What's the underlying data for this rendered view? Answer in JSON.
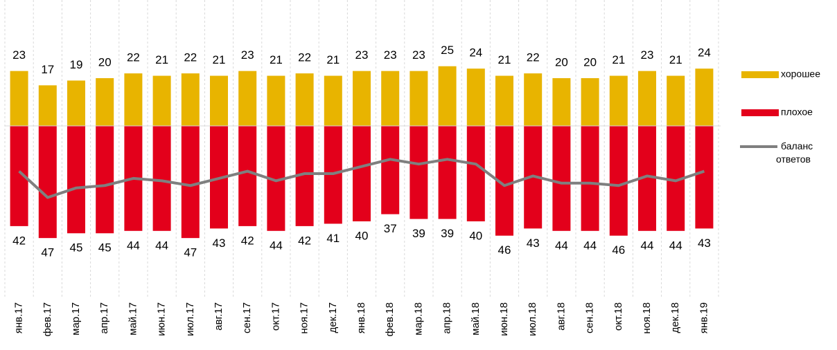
{
  "chart_data": {
    "type": "bar",
    "categories": [
      "янв.17",
      "фев.17",
      "мар.17",
      "апр.17",
      "май.17",
      "июн.17",
      "июл.17",
      "авг.17",
      "сен.17",
      "окт.17",
      "ноя.17",
      "дек.17",
      "янв.18",
      "фев.18",
      "мар.18",
      "апр.18",
      "май.18",
      "июн.18",
      "июл.18",
      "авг.18",
      "сен.18",
      "окт.18",
      "ноя.18",
      "дек.18",
      "янв.19"
    ],
    "series": [
      {
        "name": "хорошее",
        "color": "#e8b400",
        "values": [
          23,
          17,
          19,
          20,
          22,
          21,
          22,
          21,
          23,
          21,
          22,
          21,
          23,
          23,
          23,
          25,
          24,
          21,
          22,
          20,
          20,
          21,
          23,
          21,
          24
        ]
      },
      {
        "name": "плохое",
        "color": "#e3001b",
        "values": [
          -42,
          -47,
          -45,
          -45,
          -44,
          -44,
          -47,
          -43,
          -42,
          -44,
          -42,
          -41,
          -40,
          -37,
          -39,
          -39,
          -40,
          -46,
          -43,
          -44,
          -44,
          -46,
          -44,
          -44,
          -43
        ],
        "value_labels": [
          "42",
          "47",
          "45",
          "45",
          "44",
          "44",
          "47",
          "43",
          "42",
          "44",
          "42",
          "41",
          "40",
          "37",
          "39",
          "39",
          "40",
          "46",
          "43",
          "44",
          "44",
          "46",
          "44",
          "44",
          "43"
        ]
      },
      {
        "name": "баланс ответов",
        "color": "#7f7f7f",
        "type": "line",
        "values": [
          -19,
          -30,
          -26,
          -25,
          -22,
          -23,
          -25,
          -22,
          -19,
          -23,
          -20,
          -20,
          -17,
          -14,
          -16,
          -14,
          -16,
          -25,
          -21,
          -24,
          -24,
          -25,
          -21,
          -23,
          -19
        ]
      }
    ],
    "ylim": [
      -55,
      30
    ]
  }
}
